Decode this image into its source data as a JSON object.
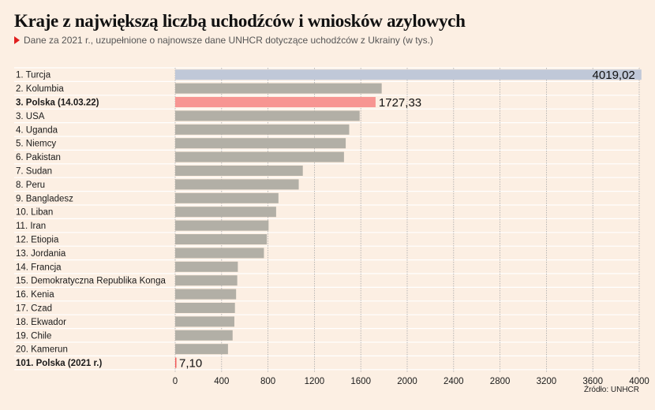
{
  "title": "Kraje z największą liczbą uchodźców i wniosków azylowych",
  "subtitle": "Dane za 2021 r., uzupełnione o najnowsze dane UNHCR dotyczące uchodźców z Ukrainy (w tys.)",
  "source": "Źródło: UNHCR",
  "colors": {
    "default_bar": "#b2afa6",
    "top_bar": "#c0c8d8",
    "highlight_bar": "#f79592",
    "highlight_small": "#f25a5a",
    "grid": "#a9a9a9"
  },
  "chart_data": {
    "type": "bar",
    "orientation": "horizontal",
    "categories": [
      "1. Turcja",
      "2. Kolumbia",
      "3. Polska (14.03.22)",
      "3. USA",
      "4. Uganda",
      "5. Niemcy",
      "6. Pakistan",
      "7. Sudan",
      "8. Peru",
      "9. Bangladesz",
      "10. Liban",
      "11. Iran",
      "12. Etiopia",
      "13. Jordania",
      "14. Francja",
      "15. Demokratyczna Republika Konga",
      "16. Kenia",
      "17. Czad",
      "18. Ekwador",
      "19. Chile",
      "20. Kamerun",
      "101. Polska (2021 r.)"
    ],
    "values": [
      4019.02,
      1780,
      1727.33,
      1590,
      1500,
      1470,
      1455,
      1100,
      1065,
      890,
      870,
      805,
      790,
      765,
      540,
      535,
      525,
      515,
      510,
      495,
      455,
      7.1
    ],
    "data_labels": [
      "4019,02",
      "",
      "1727,33",
      "",
      "",
      "",
      "",
      "",
      "",
      "",
      "",
      "",
      "",
      "",
      "",
      "",
      "",
      "",
      "",
      "",
      "",
      "7,10"
    ],
    "bold_categories": [
      2,
      21
    ],
    "xlim": [
      0,
      4000
    ],
    "xticks": [
      "0",
      "400",
      "800",
      "1200",
      "1600",
      "2000",
      "2400",
      "2800",
      "3200",
      "3600",
      "4000"
    ],
    "grid": true,
    "xlabel": "",
    "ylabel": ""
  }
}
